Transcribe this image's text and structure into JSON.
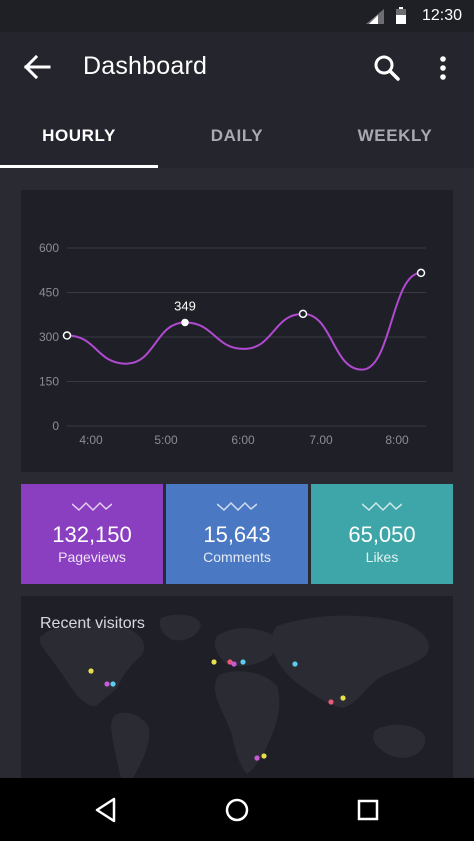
{
  "status_bar": {
    "time": "12:30",
    "icons": [
      "signal-icon",
      "battery-icon"
    ]
  },
  "app_bar": {
    "title": "Dashboard",
    "icons": [
      "arrow-back-icon",
      "search-icon",
      "more-vert-icon"
    ]
  },
  "tabs": [
    {
      "label": "HOURLY",
      "active": true
    },
    {
      "label": "DAILY",
      "active": false
    },
    {
      "label": "WEEKLY",
      "active": false
    }
  ],
  "chart_data": {
    "type": "line",
    "title": "",
    "xlabel": "",
    "ylabel": "",
    "x_tick_labels": [
      "4:00",
      "5:00",
      "6:00",
      "7.00",
      "8:00"
    ],
    "y_tick_labels": [
      "0",
      "150",
      "300",
      "450",
      "600"
    ],
    "ylim": [
      0,
      600
    ],
    "grid": true,
    "series": [
      {
        "values": [
          305,
          210,
          349,
          260,
          378,
          190,
          516
        ],
        "color": "#b04ad0",
        "marked_points": [
          0,
          2,
          4,
          6
        ]
      }
    ],
    "annotations": [
      {
        "point": 2,
        "text": "349"
      }
    ]
  },
  "stats": [
    {
      "value": "132,150",
      "label": "Pageviews",
      "color": "#8a3ec0",
      "icon": "wave-icon"
    },
    {
      "value": "15,643",
      "label": "Comments",
      "color": "#4a78c2",
      "icon": "wave-icon"
    },
    {
      "value": "65,050",
      "label": "Likes",
      "color": "#3ea6a8",
      "icon": "wave-icon"
    }
  ],
  "map": {
    "title": "Recent visitors",
    "dot_colors": [
      "#e8e04a",
      "#5ccdf0",
      "#c85ad6",
      "#e85a7a"
    ]
  },
  "nav_bar": {
    "icons": [
      "back-triangle-icon",
      "home-circle-icon",
      "recents-square-icon"
    ]
  }
}
